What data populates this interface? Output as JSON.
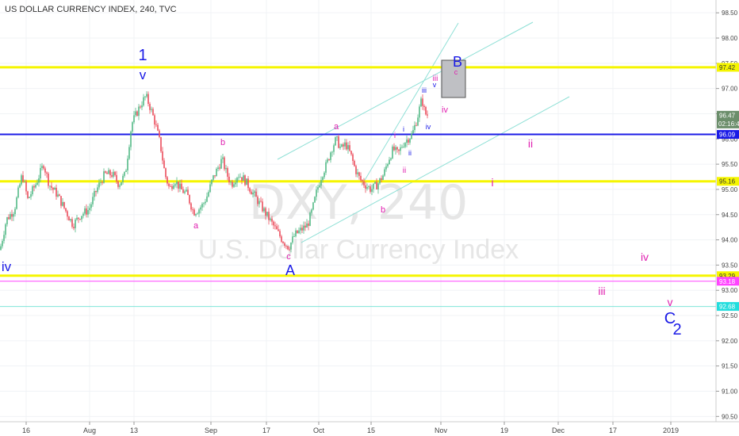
{
  "header": {
    "title": "US DOLLAR CURRENCY INDEX, 240, TVC"
  },
  "watermark": {
    "symbol": "DXY, 240",
    "name": "U.S. Dollar Currency Index"
  },
  "chart_data": {
    "type": "candlestick",
    "title": "US DOLLAR CURRENCY INDEX, 240, TVC",
    "ylim": [
      90.45,
      98.55
    ],
    "y_ticks": [
      "98.50",
      "98.00",
      "97.50",
      "97.00",
      "96.50",
      "96.00",
      "95.50",
      "95.00",
      "94.50",
      "94.00",
      "93.50",
      "93.00",
      "92.50",
      "92.00",
      "91.50",
      "91.00",
      "90.50"
    ],
    "x_ticks": [
      {
        "label": "16",
        "x": 33
      },
      {
        "label": "Aug",
        "x": 113
      },
      {
        "label": "13",
        "x": 169
      },
      {
        "label": "Sep",
        "x": 266
      },
      {
        "label": "17",
        "x": 336
      },
      {
        "label": "Oct",
        "x": 402
      },
      {
        "label": "15",
        "x": 468
      },
      {
        "label": "Nov",
        "x": 556
      },
      {
        "label": "19",
        "x": 636
      },
      {
        "label": "Dec",
        "x": 704
      },
      {
        "label": "17",
        "x": 773
      },
      {
        "label": "2019",
        "x": 846
      }
    ],
    "horizontal_levels": [
      {
        "value": 97.42,
        "color": "#f5f500",
        "width": 3,
        "label": "97.42",
        "label_bg": "#f5f500",
        "label_color": "#333333"
      },
      {
        "value": 96.09,
        "color": "#1a1ae6",
        "width": 2,
        "label": "96.09",
        "label_bg": "#1a1ae6",
        "label_color": "#ffffff"
      },
      {
        "value": 95.16,
        "color": "#f5f500",
        "width": 3,
        "label": "95.16",
        "label_bg": "#f5f500",
        "label_color": "#333333"
      },
      {
        "value": 93.29,
        "color": "#f5f500",
        "width": 3,
        "label": "93.29",
        "label_bg": "#f5f500",
        "label_color": "#333333"
      },
      {
        "value": 93.18,
        "color": "#ff44ff",
        "width": 1,
        "label": "93.18",
        "label_bg": "#ff44ff",
        "label_color": "#ffffff"
      },
      {
        "value": 92.68,
        "color": "#7fe5d9",
        "width": 1,
        "label": "92.68",
        "label_bg": "#22dddd",
        "label_color": "#ffffff"
      }
    ],
    "last_price": {
      "value": 96.47,
      "label": "96.47",
      "countdown": "02:16:40",
      "bg": "#6b8e6b"
    },
    "price_path": [
      [
        0,
        93.8
      ],
      [
        8,
        94.4
      ],
      [
        18,
        94.6
      ],
      [
        28,
        95.3
      ],
      [
        35,
        94.8
      ],
      [
        45,
        95.1
      ],
      [
        55,
        95.5
      ],
      [
        62,
        95.1
      ],
      [
        72,
        94.9
      ],
      [
        82,
        94.6
      ],
      [
        92,
        94.3
      ],
      [
        102,
        94.5
      ],
      [
        112,
        94.6
      ],
      [
        122,
        95.0
      ],
      [
        132,
        95.3
      ],
      [
        142,
        95.3
      ],
      [
        150,
        95.1
      ],
      [
        158,
        95.3
      ],
      [
        166,
        96.3
      ],
      [
        172,
        96.5
      ],
      [
        178,
        96.7
      ],
      [
        184,
        96.85
      ],
      [
        190,
        96.6
      ],
      [
        196,
        96.3
      ],
      [
        202,
        95.9
      ],
      [
        208,
        95.3
      ],
      [
        214,
        95.0
      ],
      [
        220,
        95.2
      ],
      [
        228,
        95.0
      ],
      [
        236,
        94.9
      ],
      [
        244,
        94.55
      ],
      [
        250,
        94.6
      ],
      [
        256,
        94.7
      ],
      [
        262,
        94.9
      ],
      [
        268,
        95.2
      ],
      [
        274,
        95.4
      ],
      [
        280,
        95.6
      ],
      [
        286,
        95.3
      ],
      [
        292,
        95.1
      ],
      [
        300,
        95.3
      ],
      [
        308,
        95.2
      ],
      [
        316,
        95.0
      ],
      [
        324,
        94.8
      ],
      [
        332,
        94.6
      ],
      [
        340,
        94.4
      ],
      [
        348,
        94.2
      ],
      [
        356,
        94.0
      ],
      [
        364,
        93.85
      ],
      [
        372,
        94.1
      ],
      [
        380,
        94.2
      ],
      [
        388,
        94.3
      ],
      [
        394,
        94.6
      ],
      [
        400,
        95.0
      ],
      [
        406,
        95.3
      ],
      [
        412,
        95.5
      ],
      [
        418,
        95.8
      ],
      [
        424,
        96.0
      ],
      [
        430,
        95.8
      ],
      [
        436,
        95.9
      ],
      [
        442,
        95.7
      ],
      [
        448,
        95.4
      ],
      [
        454,
        95.2
      ],
      [
        460,
        95.1
      ],
      [
        468,
        95.0
      ],
      [
        476,
        95.1
      ],
      [
        484,
        95.3
      ],
      [
        490,
        95.6
      ],
      [
        496,
        95.8
      ],
      [
        502,
        95.7
      ],
      [
        508,
        95.9
      ],
      [
        514,
        96.0
      ],
      [
        520,
        96.1
      ],
      [
        526,
        96.4
      ],
      [
        532,
        96.8
      ],
      [
        536,
        96.5
      ],
      [
        540,
        96.47
      ]
    ],
    "channels": [
      {
        "x1": 350,
        "y1": 201,
        "x2": 672,
        "y2": 28,
        "color": "#8fe0d6"
      },
      {
        "x1": 380,
        "y1": 306,
        "x2": 718,
        "y2": 122,
        "color": "#8fe0d6"
      },
      {
        "x1": 456,
        "y1": 234,
        "x2": 578,
        "y2": 29,
        "color": "#8fe0d6"
      }
    ],
    "box": {
      "x": 557,
      "y": 76,
      "w": 30,
      "h": 47,
      "fill": "#bfc0c4",
      "stroke": "#555555"
    },
    "annotations": [
      {
        "text": "1",
        "x": 180,
        "y": 76,
        "color": "#1a1ae6",
        "size": 20
      },
      {
        "text": "v",
        "x": 180,
        "y": 100,
        "color": "#1a1ae6",
        "size": 17
      },
      {
        "text": "iv",
        "x": 8,
        "y": 342,
        "color": "#1a1ae6",
        "size": 17
      },
      {
        "text": "a",
        "x": 247,
        "y": 288,
        "color": "#e020b0",
        "size": 11
      },
      {
        "text": "b",
        "x": 281,
        "y": 183,
        "color": "#e020b0",
        "size": 11
      },
      {
        "text": "c",
        "x": 364,
        "y": 327,
        "color": "#e020b0",
        "size": 11
      },
      {
        "text": "A",
        "x": 366,
        "y": 347,
        "color": "#1a1ae6",
        "size": 18
      },
      {
        "text": "a",
        "x": 424,
        "y": 163,
        "color": "#e020b0",
        "size": 11
      },
      {
        "text": "b",
        "x": 483,
        "y": 268,
        "color": "#e020b0",
        "size": 11
      },
      {
        "text": "i",
        "x": 498,
        "y": 174,
        "color": "#e020b0",
        "size": 10
      },
      {
        "text": "ii",
        "x": 510,
        "y": 218,
        "color": "#e020b0",
        "size": 10
      },
      {
        "text": "i",
        "x": 509,
        "y": 166,
        "color": "#1a1ae6",
        "size": 9
      },
      {
        "text": "ii",
        "x": 517,
        "y": 196,
        "color": "#1a1ae6",
        "size": 9
      },
      {
        "text": "iii",
        "x": 535,
        "y": 117,
        "color": "#1a1ae6",
        "size": 9
      },
      {
        "text": "iv",
        "x": 540,
        "y": 163,
        "color": "#1a1ae6",
        "size": 9
      },
      {
        "text": "iii",
        "x": 549,
        "y": 102,
        "color": "#e020b0",
        "size": 10
      },
      {
        "text": "v",
        "x": 548,
        "y": 110,
        "color": "#1a1ae6",
        "size": 9
      },
      {
        "text": "iv",
        "x": 561,
        "y": 142,
        "color": "#e020b0",
        "size": 11
      },
      {
        "text": "B",
        "x": 577,
        "y": 84,
        "color": "#1a1ae6",
        "size": 18
      },
      {
        "text": "c",
        "x": 575,
        "y": 94,
        "color": "#e020b0",
        "size": 9
      },
      {
        "text": "ii",
        "x": 669,
        "y": 186,
        "color": "#e020b0",
        "size": 14
      },
      {
        "text": "i",
        "x": 621,
        "y": 235,
        "color": "#e020b0",
        "size": 14
      },
      {
        "text": "iv",
        "x": 813,
        "y": 329,
        "color": "#e020b0",
        "size": 14
      },
      {
        "text": "iii",
        "x": 759,
        "y": 372,
        "color": "#e020b0",
        "size": 14
      },
      {
        "text": "v",
        "x": 845,
        "y": 386,
        "color": "#e020b0",
        "size": 14
      },
      {
        "text": "C",
        "x": 845,
        "y": 408,
        "color": "#1a1ae6",
        "size": 20
      },
      {
        "text": "2",
        "x": 854,
        "y": 422,
        "color": "#1a1ae6",
        "size": 20
      }
    ]
  }
}
